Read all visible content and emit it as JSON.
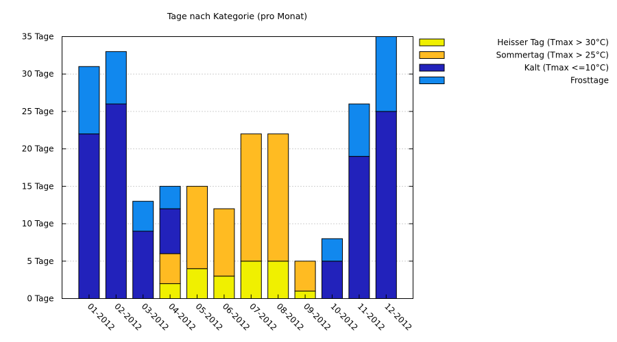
{
  "chart_data": {
    "type": "bar",
    "stacked": true,
    "title": "Tage nach Kategorie (pro Monat)",
    "xlabel": "",
    "ylabel": "",
    "categories": [
      "01-2012",
      "02-2012",
      "03-2012",
      "04-2012",
      "05-2012",
      "06-2012",
      "07-2012",
      "08-2012",
      "09-2012",
      "10-2012",
      "11-2012",
      "12-2012"
    ],
    "y_unit": "Tage",
    "ylim": [
      0,
      35
    ],
    "y_ticks": [
      0,
      5,
      10,
      15,
      20,
      25,
      30,
      35
    ],
    "grid": "horizontal-dotted",
    "legend_position": "right",
    "series": [
      {
        "name": "Heisser Tag (Tmax > 30°C)",
        "color": "#f0f000",
        "values": [
          0,
          0,
          0,
          2,
          4,
          3,
          5,
          5,
          1,
          0,
          0,
          0
        ]
      },
      {
        "name": "Sommertag (Tmax > 25°C)",
        "color": "#ffbb22",
        "values": [
          0,
          0,
          0,
          4,
          11,
          9,
          17,
          17,
          4,
          0,
          0,
          0
        ]
      },
      {
        "name": "Kalt (Tmax <=10°C)",
        "color": "#2222bb",
        "values": [
          22,
          26,
          9,
          6,
          0,
          0,
          0,
          0,
          0,
          5,
          19,
          25
        ]
      },
      {
        "name": "Frosttage",
        "color": "#1188ee",
        "values": [
          9,
          7,
          4,
          3,
          0,
          0,
          0,
          0,
          0,
          3,
          7,
          10
        ]
      }
    ]
  }
}
